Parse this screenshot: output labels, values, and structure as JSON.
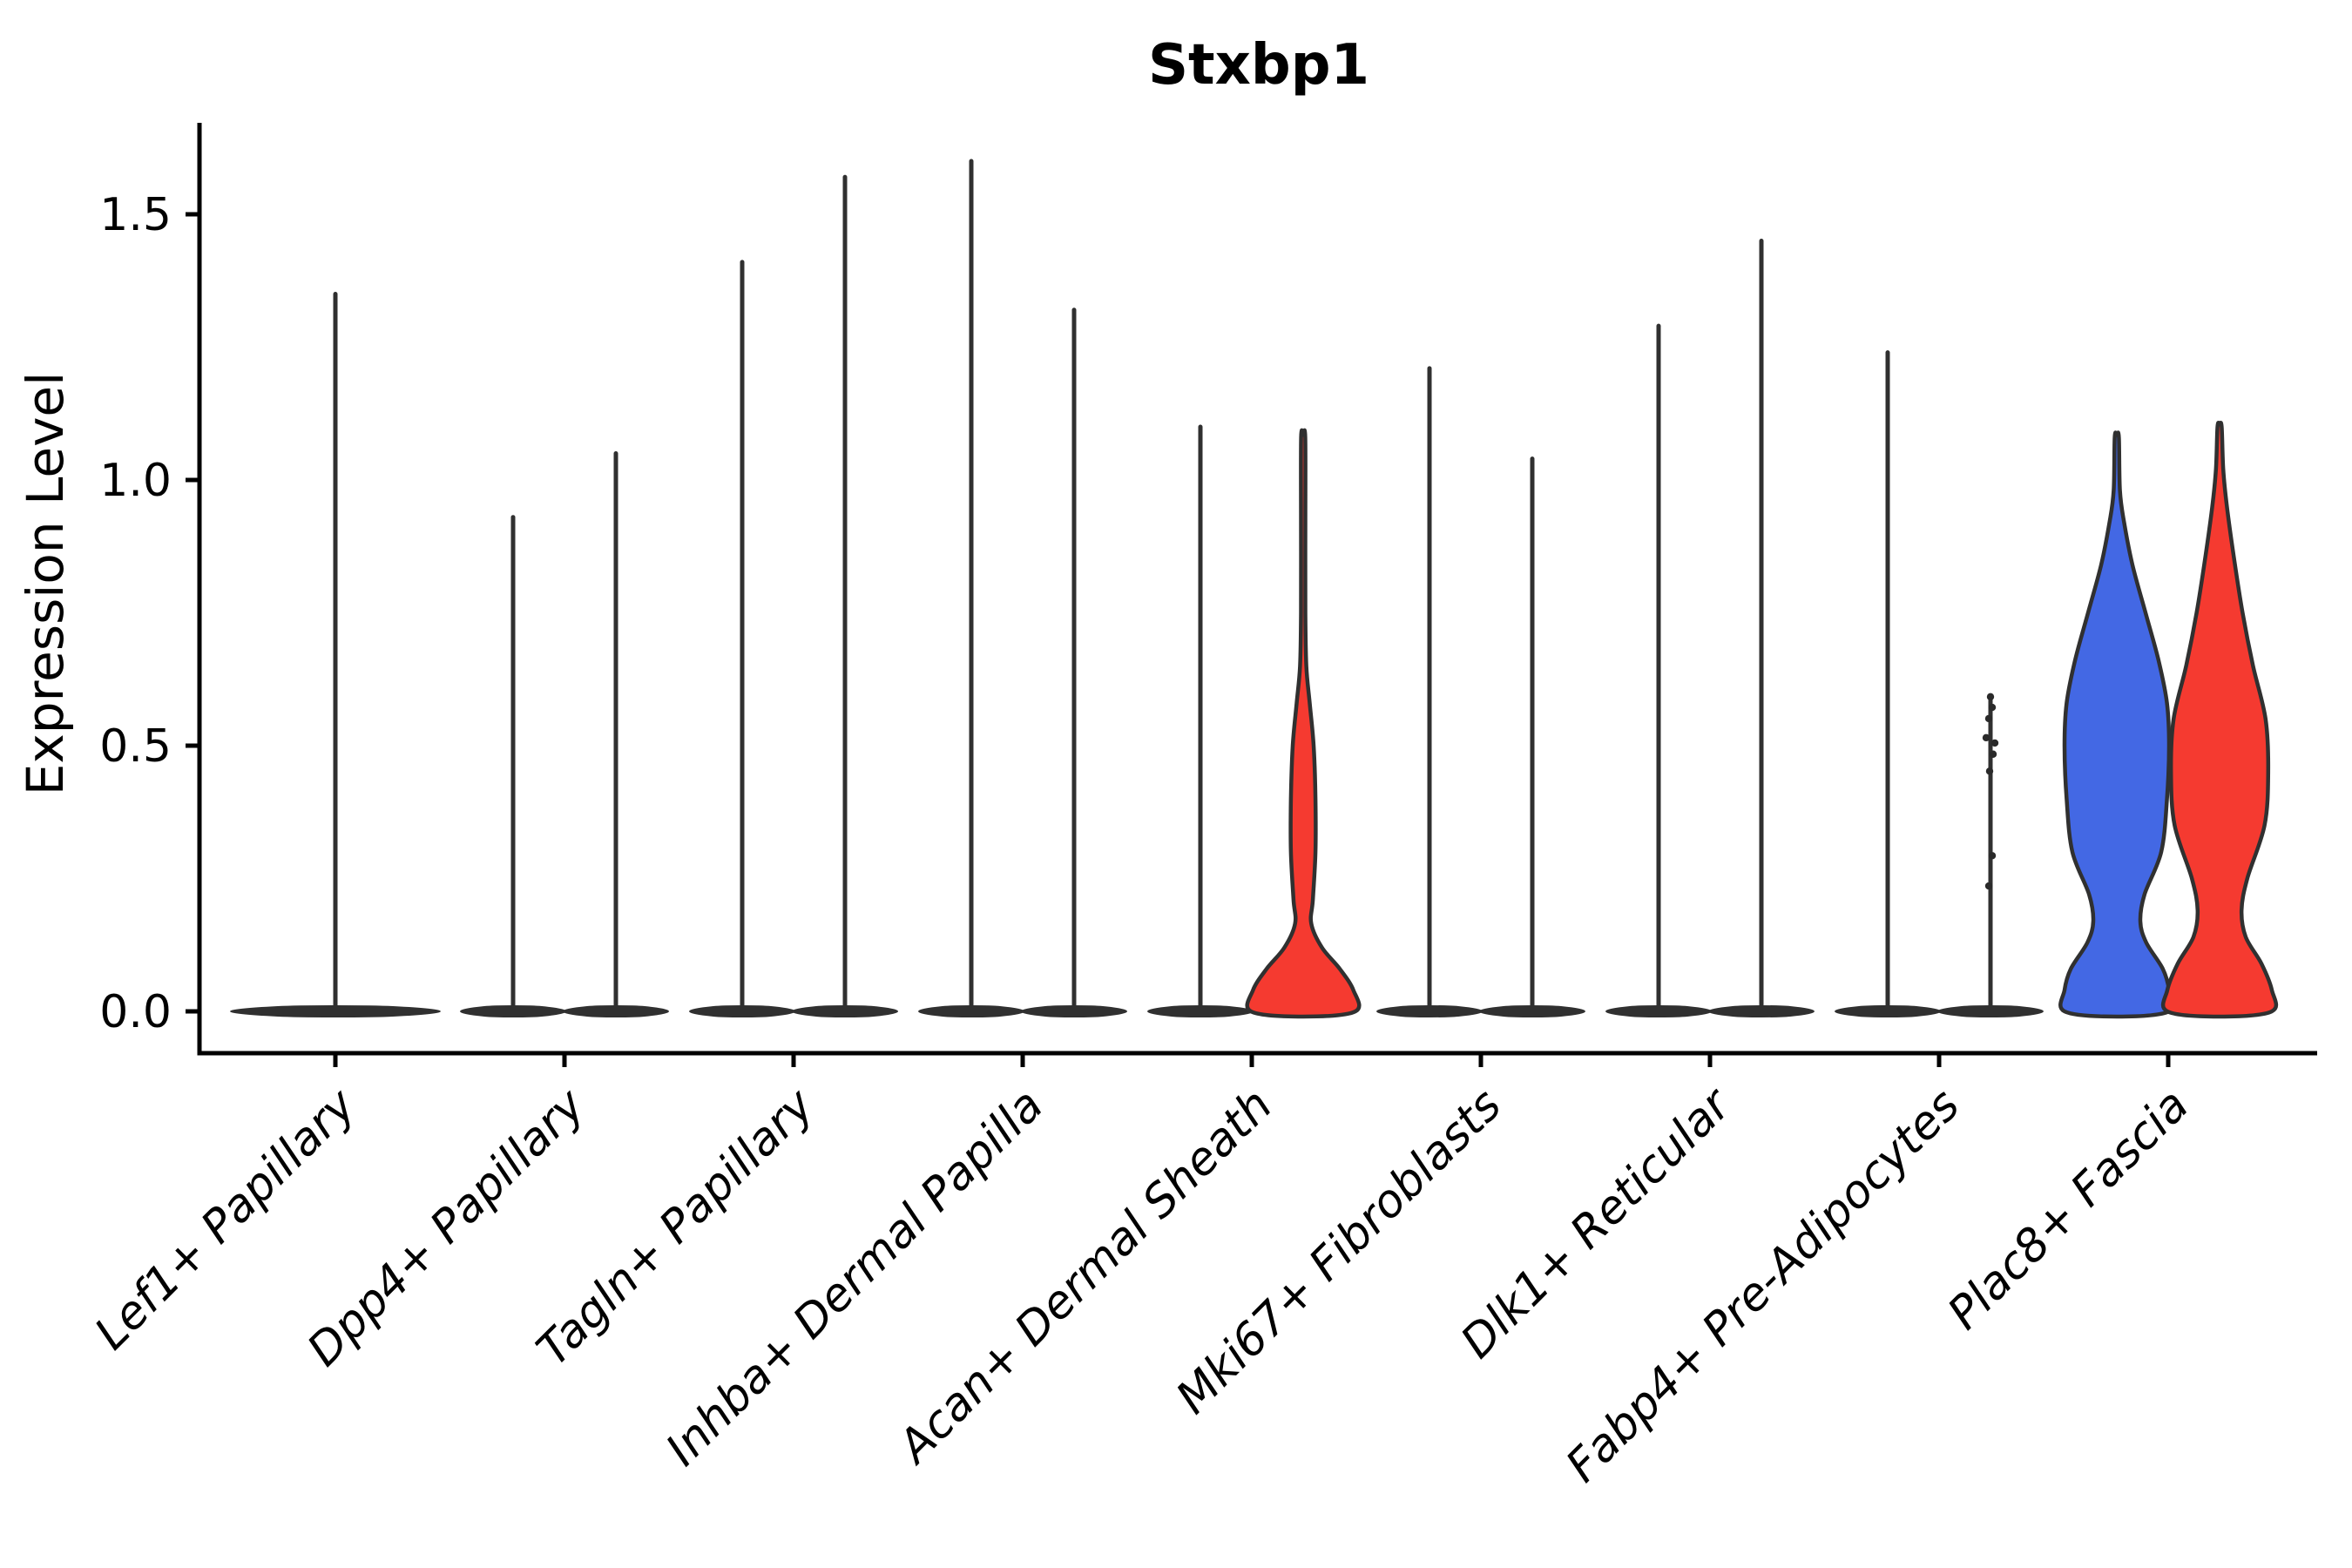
{
  "title": "Stxbp1",
  "axes": {
    "y_label": "Expression Level",
    "y_tick_labels": [
      "0.0",
      "0.5",
      "1.0",
      "1.5"
    ],
    "x_tick_labels": [
      "Lef1+ Papillary",
      "Dpp4+ Papillary",
      "Tagln+ Papillary",
      "Inhba+ Dermal Papilla",
      "Acan+ Dermal Sheath",
      "Mki67+ Fibroblasts",
      "Dlk1+ Reticular",
      "Fabp4+ Pre-Adipocytes",
      "Plac8+ Fascia"
    ]
  },
  "colors": {
    "blue": "#4368E4",
    "red": "#F53A30",
    "edge": "#303030",
    "axis": "#000000",
    "background": "#FFFFFF"
  },
  "chart_data": {
    "type": "violin",
    "title": "Stxbp1",
    "ylabel": "Expression Level",
    "ylim": [
      0,
      1.68
    ],
    "y_ticks": [
      0.0,
      0.5,
      1.0,
      1.5
    ],
    "grid": false,
    "legend": "none",
    "categories": [
      "Lef1+ Papillary",
      "Dpp4+ Papillary",
      "Tagln+ Papillary",
      "Inhba+ Dermal Papilla",
      "Acan+ Dermal Sheath",
      "Mki67+ Fibroblasts",
      "Dlk1+ Reticular",
      "Fabp4+ Pre-Adipocytes",
      "Plac8+ Fascia"
    ],
    "violins": [
      {
        "category": "Lef1+ Papillary",
        "position": "center",
        "style": "spike",
        "width": "double",
        "max": 1.35
      },
      {
        "category": "Dpp4+ Papillary",
        "position": "left",
        "style": "spike",
        "max": 0.93
      },
      {
        "category": "Dpp4+ Papillary",
        "position": "right",
        "style": "spike",
        "max": 1.05
      },
      {
        "category": "Tagln+ Papillary",
        "position": "left",
        "style": "spike",
        "max": 1.41
      },
      {
        "category": "Tagln+ Papillary",
        "position": "right",
        "style": "spike",
        "max": 1.57
      },
      {
        "category": "Inhba+ Dermal Papilla",
        "position": "left",
        "style": "spike",
        "max": 1.6
      },
      {
        "category": "Inhba+ Dermal Papilla",
        "position": "right",
        "style": "spike",
        "max": 1.32
      },
      {
        "category": "Acan+ Dermal Sheath",
        "position": "left",
        "style": "spike",
        "max": 1.1
      },
      {
        "category": "Acan+ Dermal Sheath",
        "position": "right",
        "style": "body",
        "fill": "#F53A30",
        "max": 1.08,
        "profile": [
          [
            0,
            1.0
          ],
          [
            0.04,
            0.96
          ],
          [
            0.08,
            0.7
          ],
          [
            0.12,
            0.36
          ],
          [
            0.165,
            0.155
          ],
          [
            0.21,
            0.185
          ],
          [
            0.3,
            0.235
          ],
          [
            0.4,
            0.235
          ],
          [
            0.5,
            0.2
          ],
          [
            0.58,
            0.125
          ],
          [
            0.65,
            0.06
          ],
          [
            0.75,
            0.042
          ],
          [
            0.92,
            0.042
          ],
          [
            1.08,
            0.04
          ]
        ]
      },
      {
        "category": "Mki67+ Fibroblasts",
        "position": "left",
        "style": "spike",
        "max": 1.21
      },
      {
        "category": "Mki67+ Fibroblasts",
        "position": "right",
        "style": "spike",
        "max": 1.04
      },
      {
        "category": "Dlk1+ Reticular",
        "position": "left",
        "style": "spike",
        "max": 1.29
      },
      {
        "category": "Dlk1+ Reticular",
        "position": "right",
        "style": "spike",
        "max": 1.45
      },
      {
        "category": "Fabp4+ Pre-Adipocytes",
        "position": "left",
        "style": "spike",
        "max": 1.24
      },
      {
        "category": "Fabp4+ Pre-Adipocytes",
        "position": "right",
        "style": "spike",
        "max": 0.592,
        "points": [
          0.592,
          0.572,
          0.551,
          0.515,
          0.505,
          0.484,
          0.452,
          0.293,
          0.236
        ]
      },
      {
        "category": "Plac8+ Fascia",
        "position": "left",
        "style": "body",
        "fill": "#4368E4",
        "max": 1.08,
        "profile": [
          [
            0,
            1.0
          ],
          [
            0.04,
            1.0
          ],
          [
            0.08,
            0.88
          ],
          [
            0.13,
            0.56
          ],
          [
            0.17,
            0.45
          ],
          [
            0.22,
            0.53
          ],
          [
            0.3,
            0.85
          ],
          [
            0.4,
            0.96
          ],
          [
            0.5,
            1.0
          ],
          [
            0.58,
            0.96
          ],
          [
            0.66,
            0.8
          ],
          [
            0.75,
            0.55
          ],
          [
            0.84,
            0.3
          ],
          [
            0.92,
            0.14
          ],
          [
            0.98,
            0.06
          ],
          [
            1.08,
            0.04
          ]
        ]
      },
      {
        "category": "Plac8+ Fascia",
        "position": "right",
        "style": "body",
        "fill": "#F53A30",
        "max": 1.1,
        "profile": [
          [
            0,
            1.0
          ],
          [
            0.04,
            1.0
          ],
          [
            0.09,
            0.8
          ],
          [
            0.14,
            0.5
          ],
          [
            0.19,
            0.42
          ],
          [
            0.25,
            0.53
          ],
          [
            0.35,
            0.86
          ],
          [
            0.45,
            0.93
          ],
          [
            0.55,
            0.88
          ],
          [
            0.65,
            0.64
          ],
          [
            0.75,
            0.44
          ],
          [
            0.85,
            0.28
          ],
          [
            0.95,
            0.14
          ],
          [
            1.02,
            0.07
          ],
          [
            1.1,
            0.04
          ]
        ]
      }
    ]
  }
}
